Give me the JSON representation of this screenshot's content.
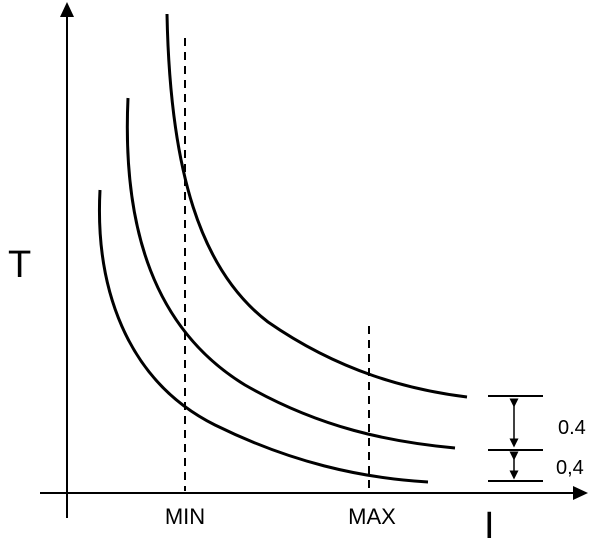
{
  "axes": {
    "y_label": "T",
    "x_label": "I"
  },
  "markers": {
    "min_label": "MIN",
    "max_label": "MAX"
  },
  "spacing": {
    "upper_gap_label": "0.4",
    "lower_gap_label": "0,4"
  },
  "curves": [
    "curve-lower",
    "curve-middle",
    "curve-upper"
  ],
  "colors": {
    "ink": "#000000",
    "background": "#ffffff"
  }
}
